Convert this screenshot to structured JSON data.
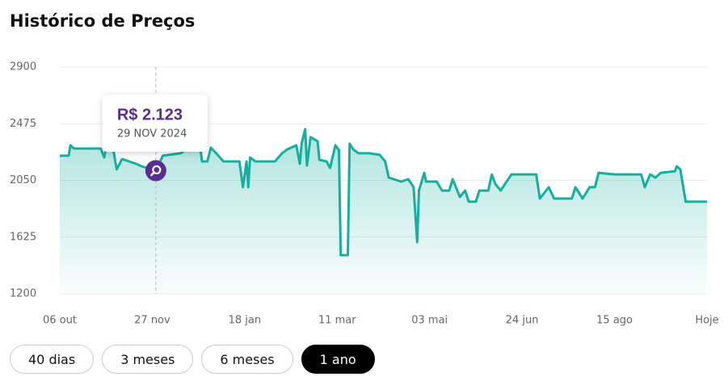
{
  "title": "Histórico de Preços",
  "chart_data": {
    "type": "line",
    "series": [
      {
        "color": "#14b09f",
        "x": [
          0,
          5,
          6,
          8,
          23,
          25,
          26,
          30,
          32,
          35,
          39,
          43,
          46,
          54,
          58,
          68,
          72,
          79,
          80,
          83,
          85,
          88,
          92,
          101,
          103,
          105,
          106,
          107,
          110,
          115,
          121,
          125,
          128,
          133,
          135,
          136,
          138,
          139,
          141,
          145,
          146,
          150,
          152,
          155,
          157,
          158,
          162,
          163,
          165,
          168,
          174,
          180,
          183,
          185,
          192,
          196,
          199,
          201,
          202,
          205,
          206,
          212,
          215,
          219,
          221,
          225,
          228,
          230,
          234,
          236,
          241,
          243,
          245,
          248,
          254,
          268,
          270,
          275,
          278,
          288,
          290,
          294,
          298,
          301,
          303,
          312,
          327,
          329,
          332,
          335,
          338,
          346,
          347,
          349,
          352,
          364
        ],
        "values": [
          2235,
          2235,
          2313,
          2289,
          2289,
          2222,
          2289,
          2289,
          2132,
          2210,
          2192,
          2174,
          2156,
          2123,
          2235,
          2253,
          2295,
          2295,
          2192,
          2192,
          2295,
          2253,
          2192,
          2192,
          1999,
          2192,
          1999,
          2222,
          2192,
          2192,
          2192,
          2253,
          2283,
          2313,
          2174,
          2325,
          2434,
          2162,
          2374,
          2343,
          2204,
          2192,
          2144,
          2313,
          2277,
          1490,
          1490,
          2325,
          2283,
          2253,
          2253,
          2241,
          2192,
          2071,
          2041,
          2059,
          1999,
          1587,
          1974,
          2107,
          2041,
          2041,
          1974,
          1974,
          2059,
          1926,
          1974,
          1890,
          1890,
          1974,
          1974,
          2095,
          2023,
          1974,
          2095,
          2095,
          1914,
          1999,
          1914,
          1914,
          1999,
          1914,
          1999,
          1999,
          2107,
          2095,
          2095,
          1999,
          2095,
          2071,
          2107,
          2119,
          2156,
          2132,
          1890,
          1890
        ]
      }
    ],
    "xlim": [
      0,
      364
    ],
    "xticks": [
      {
        "value": 0,
        "label": "06 out"
      },
      {
        "value": 52,
        "label": "27 nov"
      },
      {
        "value": 104,
        "label": "18 jan"
      },
      {
        "value": 156,
        "label": "11 mar"
      },
      {
        "value": 208,
        "label": "03 mai"
      },
      {
        "value": 260,
        "label": "24 jun"
      },
      {
        "value": 312,
        "label": "15 ago"
      },
      {
        "value": 364,
        "label": "Hoje"
      }
    ],
    "ylim": [
      1200,
      2900
    ],
    "yticks": [
      2900,
      2475,
      2050,
      1625,
      1200
    ],
    "grid": true,
    "tooltip": {
      "x": 54,
      "value": 2123,
      "label": "R$ 2.123",
      "date": "29 NOV 2024"
    }
  },
  "range_buttons": [
    "40 dias",
    "3 meses",
    "6 meses",
    "1 ano"
  ],
  "active_button": 3
}
